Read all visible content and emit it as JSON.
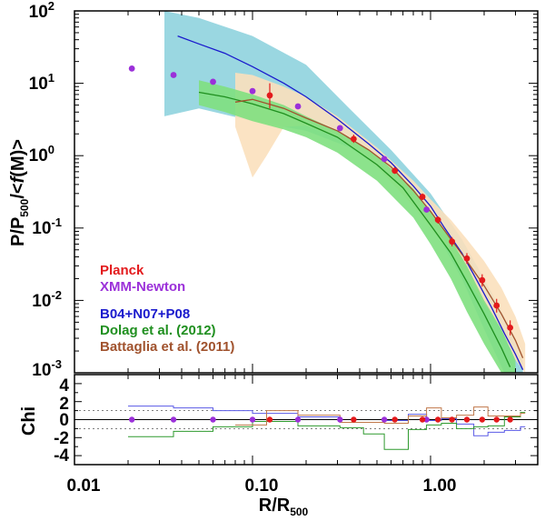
{
  "chart_data": [
    {
      "type": "line",
      "panel": "top",
      "xscale": "log",
      "yscale": "log",
      "xlim": [
        0.01,
        4.0
      ],
      "ylim": [
        0.001,
        100
      ],
      "xlabel": "R/R",
      "xlabel_sub": "500",
      "ylabel_parts": [
        "P/P",
        "500",
        "/<",
        "f",
        "(M)>"
      ],
      "y_ticks": [
        {
          "value": 100,
          "base": "10",
          "exp": "2"
        },
        {
          "value": 10,
          "base": "10",
          "exp": "1"
        },
        {
          "value": 1,
          "base": "10",
          "exp": "0"
        },
        {
          "value": 0.1,
          "base": "10",
          "exp": "-1"
        },
        {
          "value": 0.01,
          "base": "10",
          "exp": "-2"
        },
        {
          "value": 0.001,
          "base": "10",
          "exp": "-3"
        }
      ],
      "legend": [
        {
          "label": "Planck",
          "color": "#e31a1c"
        },
        {
          "label": "XMM-Newton",
          "color": "#9b30d9"
        },
        {
          "label": "B04+N07+P08",
          "color": "#1a1acd"
        },
        {
          "label": "Dolag et al. (2012)",
          "color": "#1f8f1f"
        },
        {
          "label": "Battaglia et al. (2011)",
          "color": "#a0522d"
        }
      ],
      "bands": [
        {
          "name": "B04+N07+P08 range",
          "color": "#8fd3de",
          "x": [
            0.032,
            0.05,
            0.1,
            0.2,
            0.35,
            0.6,
            1.0,
            1.5,
            2.0,
            2.6,
            3.3
          ],
          "upper": [
            100,
            80,
            45,
            18,
            4.5,
            1.2,
            0.3,
            0.07,
            0.02,
            0.006,
            0.0015
          ],
          "lower": [
            3.5,
            4.5,
            3.0,
            2.2,
            1.3,
            0.55,
            0.12,
            0.02,
            0.004,
            0.001,
            0.001
          ]
        },
        {
          "name": "Battaglia range",
          "color": "#fbe0bd",
          "x": [
            0.08,
            0.1,
            0.12,
            0.15,
            0.2,
            0.3,
            0.5,
            0.8,
            1.0,
            1.3,
            1.6,
            2.0,
            2.5,
            3.0,
            3.4
          ],
          "upper": [
            14,
            13,
            11,
            9,
            6.5,
            3.5,
            1.3,
            0.45,
            0.25,
            0.13,
            0.07,
            0.035,
            0.015,
            0.006,
            0.0025
          ],
          "lower": [
            2.5,
            0.5,
            1.0,
            2.5,
            2.6,
            1.8,
            0.7,
            0.2,
            0.1,
            0.045,
            0.02,
            0.009,
            0.004,
            0.0015,
            0.001
          ]
        },
        {
          "name": "Dolag range",
          "color": "#7fe07f",
          "x": [
            0.05,
            0.07,
            0.1,
            0.15,
            0.2,
            0.3,
            0.5,
            0.8,
            1.0,
            1.3,
            1.6,
            2.0,
            2.5,
            3.0
          ],
          "upper": [
            11,
            9,
            7,
            5,
            3.5,
            2.2,
            1.0,
            0.35,
            0.17,
            0.07,
            0.03,
            0.01,
            0.004,
            0.0015
          ],
          "lower": [
            5,
            4,
            3,
            2.3,
            1.8,
            1.1,
            0.45,
            0.14,
            0.06,
            0.02,
            0.007,
            0.0025,
            0.001,
            0.001
          ]
        }
      ],
      "series": [
        {
          "name": "B04+N07+P08",
          "color": "#1a1acd",
          "x": [
            0.038,
            0.05,
            0.07,
            0.1,
            0.15,
            0.2,
            0.3,
            0.45,
            0.6,
            0.8,
            1.0,
            1.2,
            1.5,
            1.8,
            2.2,
            2.6,
            3.0,
            3.3
          ],
          "y": [
            45,
            35,
            26,
            17,
            10,
            6.5,
            3.2,
            1.45,
            0.8,
            0.38,
            0.2,
            0.1,
            0.045,
            0.02,
            0.008,
            0.0035,
            0.0018,
            0.0011
          ]
        },
        {
          "name": "Dolag et al. (2012)",
          "color": "#1f8f1f",
          "x": [
            0.05,
            0.07,
            0.1,
            0.15,
            0.2,
            0.3,
            0.5,
            0.7,
            1.0,
            1.3,
            1.6,
            2.0,
            2.5,
            2.8
          ],
          "y": [
            7.5,
            6.5,
            5.2,
            3.8,
            2.8,
            1.8,
            0.75,
            0.36,
            0.11,
            0.045,
            0.018,
            0.0065,
            0.0022,
            0.0012
          ]
        },
        {
          "name": "Battaglia et al. (2011)",
          "color": "#a0522d",
          "x": [
            0.08,
            0.1,
            0.15,
            0.2,
            0.3,
            0.45,
            0.6,
            0.8,
            1.0,
            1.25,
            1.6,
            2.0,
            2.5,
            3.0,
            3.3
          ],
          "y": [
            5.5,
            6.0,
            4.5,
            3.3,
            2.2,
            1.2,
            0.7,
            0.33,
            0.17,
            0.08,
            0.035,
            0.016,
            0.0065,
            0.0028,
            0.0016
          ]
        }
      ],
      "points": [
        {
          "name": "XMM-Newton",
          "color": "#9b30d9",
          "x": [
            0.021,
            0.036,
            0.06,
            0.1,
            0.18,
            0.31,
            0.55,
            0.95
          ],
          "y": [
            16,
            13,
            10.5,
            7.8,
            4.8,
            2.4,
            0.9,
            0.18
          ]
        },
        {
          "name": "Planck",
          "color": "#e31a1c",
          "x": [
            0.125,
            0.37,
            0.63,
            0.9,
            1.1,
            1.32,
            1.6,
            1.95,
            2.35,
            2.8
          ],
          "y": [
            6.8,
            1.7,
            0.62,
            0.27,
            0.13,
            0.065,
            0.038,
            0.019,
            0.0085,
            0.0042
          ],
          "err_low": [
            4.5,
            1.5,
            0.56,
            0.245,
            0.115,
            0.056,
            0.032,
            0.0155,
            0.0068,
            0.0033
          ],
          "err_high": [
            10,
            1.95,
            0.69,
            0.3,
            0.145,
            0.075,
            0.045,
            0.023,
            0.0105,
            0.0053
          ]
        }
      ]
    },
    {
      "type": "line",
      "panel": "bottom",
      "xscale": "log",
      "xlim": [
        0.01,
        4.0
      ],
      "ylim": [
        -5,
        5
      ],
      "ylabel": "Chi",
      "y_ticks": [
        "-4",
        "-2",
        "0",
        "2",
        "4"
      ],
      "x_ticks": [
        {
          "value": 0.01,
          "label": "0.01"
        },
        {
          "value": 0.1,
          "label": "0.10"
        },
        {
          "value": 1.0,
          "label": "1.00"
        }
      ],
      "reference_lines": [
        1,
        -1
      ],
      "series": [
        {
          "name": "B04+N07+P08",
          "color": "#5a5ae6",
          "step": true,
          "x": [
            0.02,
            0.036,
            0.06,
            0.1,
            0.18,
            0.31,
            0.55,
            0.75,
            0.95,
            1.15,
            1.4,
            1.75,
            2.1,
            2.6,
            3.2,
            3.4
          ],
          "y": [
            1.5,
            1.3,
            1.0,
            0.7,
            0.3,
            -0.3,
            -0.1,
            0.6,
            -0.1,
            0.1,
            -0.5,
            -1.8,
            -1.4,
            -1.2,
            -0.8,
            -0.8
          ]
        },
        {
          "name": "Dolag et al. (2012)",
          "color": "#2e9a2e",
          "step": true,
          "x": [
            0.02,
            0.036,
            0.06,
            0.1,
            0.18,
            0.31,
            0.42,
            0.55,
            0.75,
            0.95,
            1.15,
            1.4,
            1.75,
            2.1,
            2.6,
            3.2,
            3.4
          ],
          "y": [
            -1.9,
            -1.3,
            -0.8,
            -0.2,
            -0.7,
            -0.9,
            -1.6,
            -3.3,
            -1.1,
            -0.6,
            -0.4,
            -1.0,
            -0.8,
            -0.7,
            0.3,
            0.8,
            0.8
          ]
        },
        {
          "name": "Battaglia et al. (2011)",
          "color": "#c0784a",
          "step": true,
          "x": [
            0.08,
            0.12,
            0.18,
            0.31,
            0.55,
            0.75,
            0.95,
            1.15,
            1.4,
            1.75,
            2.1,
            2.6,
            3.2,
            3.4
          ],
          "y": [
            -0.6,
            1.0,
            0.5,
            -0.3,
            -0.4,
            0.4,
            1.3,
            0.2,
            0.5,
            1.4,
            0.4,
            0.4,
            0.7,
            0.7
          ]
        }
      ],
      "points": [
        {
          "name": "XMM-Newton",
          "color": "#9b30d9",
          "x": [
            0.021,
            0.036,
            0.06,
            0.1,
            0.18,
            0.31,
            0.55,
            0.95
          ],
          "y": [
            0,
            0,
            0,
            0,
            0,
            0,
            0,
            0
          ]
        },
        {
          "name": "Planck",
          "color": "#e31a1c",
          "x": [
            0.125,
            0.37,
            0.63,
            0.9,
            1.1,
            1.32,
            1.6,
            1.95,
            2.35,
            2.8
          ],
          "y": [
            0,
            0,
            0,
            0,
            0,
            0,
            0,
            0,
            0,
            0
          ]
        }
      ]
    }
  ]
}
